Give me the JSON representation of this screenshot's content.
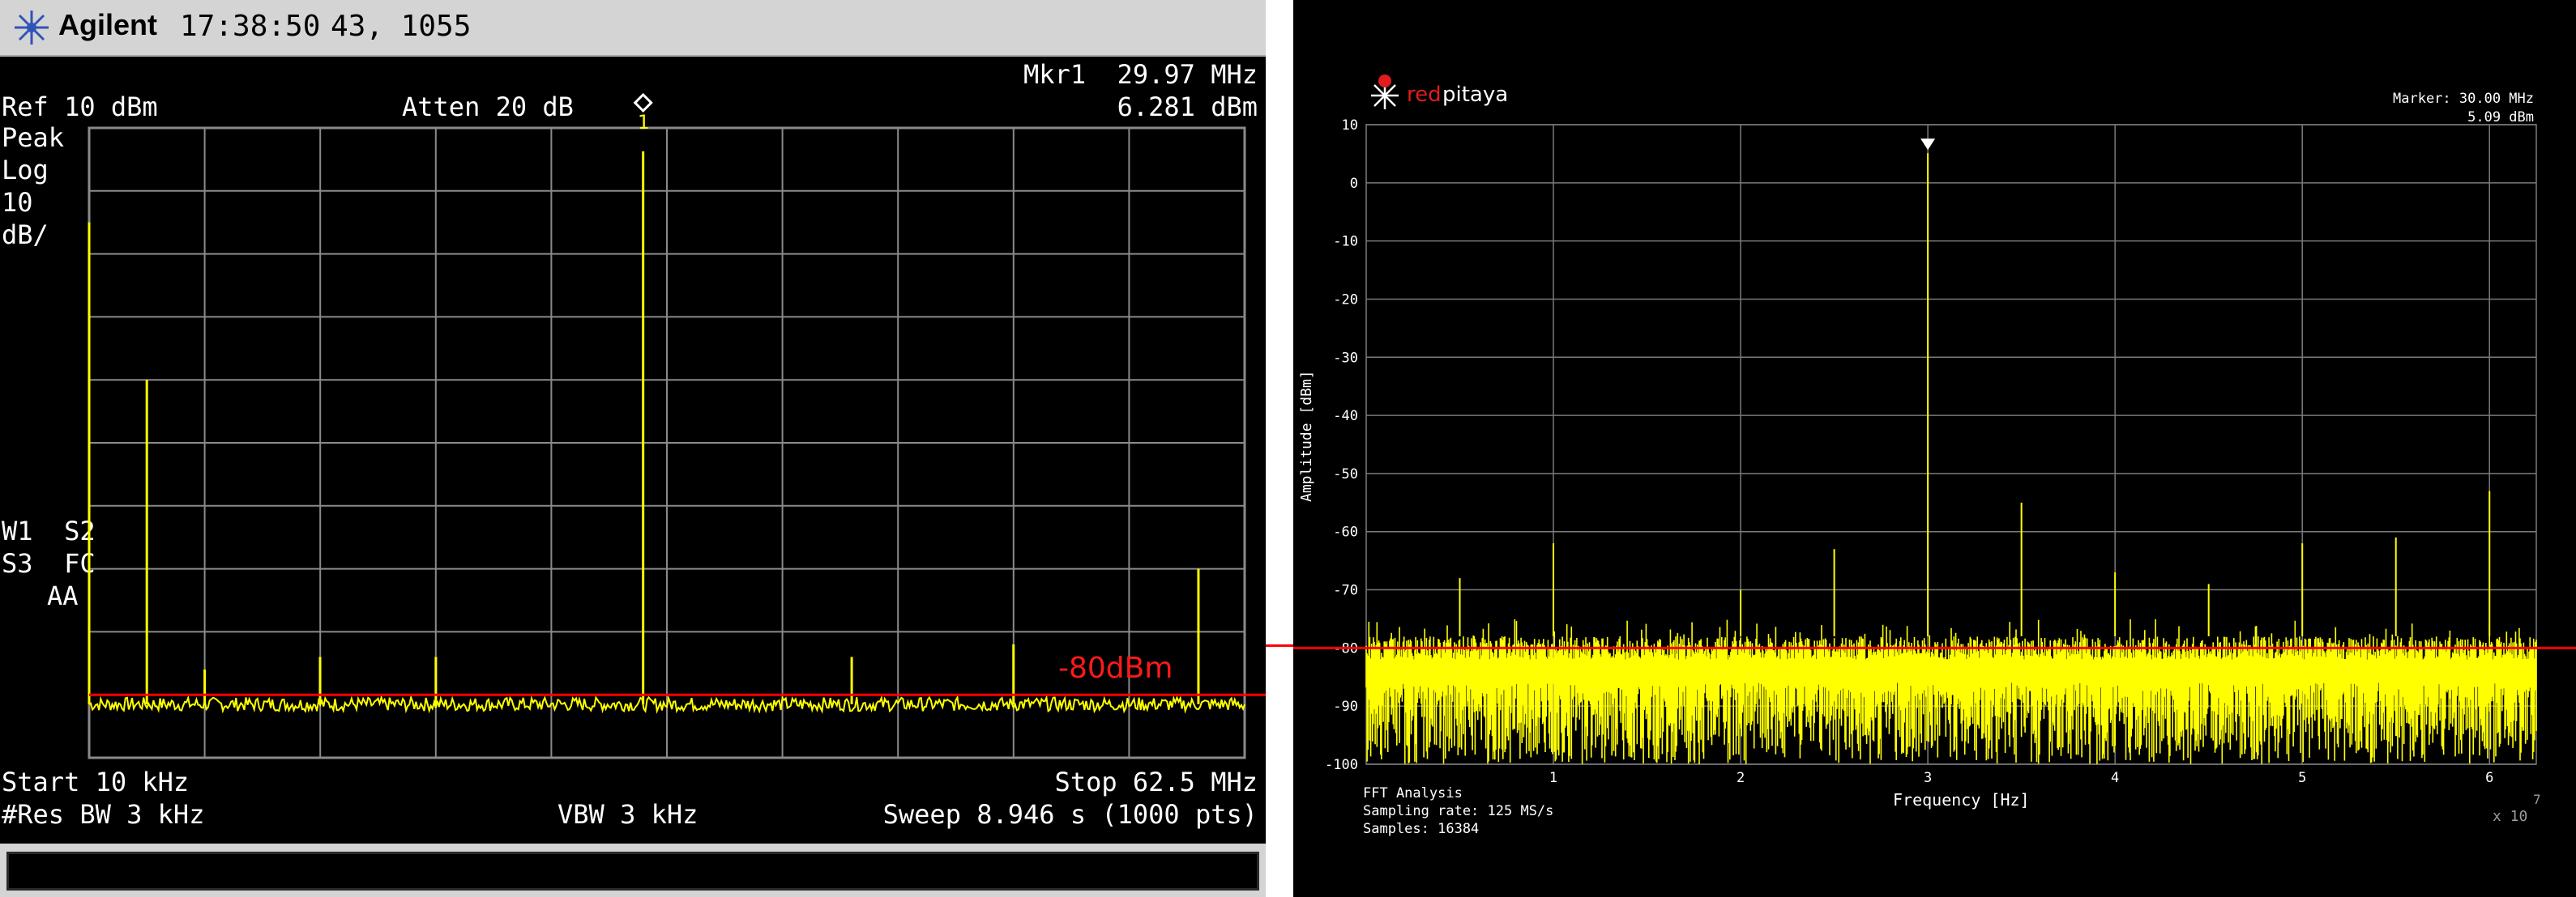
{
  "analyzer": {
    "brand": "Agilent",
    "time": "17:38:50",
    "date": "43, 1055",
    "marker_label": "Mkr1  29.97 MHz",
    "marker_level": "6.281 dBm",
    "ref": "Ref 10 dBm",
    "atten": "Atten 20 dB",
    "detector": "Peak",
    "scale_mode": "Log",
    "scale_value": "10",
    "scale_unit": "dB/",
    "status_1": "W1  S2",
    "status_2": "S3  FC",
    "status_3": "AA",
    "start": "Start 10 kHz",
    "stop": "Stop 62.5 MHz",
    "res_bw": "#Res BW 3 kHz",
    "vbw": "VBW 3 kHz",
    "sweep": "Sweep 8.946 s (1000 pts)",
    "marker_number": "1",
    "annotation": "-80dBm",
    "colors": {
      "trace": "#ffff00",
      "grid": "#8a8a8a",
      "reference_line": "#ff0000",
      "background": "#000000"
    }
  },
  "fft": {
    "logo_red": "red",
    "logo_white": "pitaya",
    "marker_line1": "Marker: 30.00 MHz",
    "marker_line2": "5.09 dBm",
    "ylabel": "Amplitude [dBm]",
    "xlabel": "Frequency [Hz]",
    "x_multiplier": "x 10",
    "x_exponent": "7",
    "info_1": "FFT Analysis",
    "info_2": "Sampling rate: 125 MS/s",
    "info_3": "Samples: 16384",
    "colors": {
      "trace": "#ffff00",
      "grid": "#7a7a7a",
      "reference_line": "#ff0000",
      "background": "#000000"
    }
  },
  "chart_data": [
    {
      "type": "line",
      "title": "",
      "xlabel": "",
      "ylabel": "",
      "x_unit": "MHz",
      "y_unit": "dBm",
      "xlim": [
        0.01,
        62.5
      ],
      "ylim": [
        -90,
        10
      ],
      "grid": true,
      "noise_floor": -81.5,
      "reference_line": -80,
      "series": [
        {
          "x": [
            0.01,
            3.13,
            6.26,
            12.5,
            18.76,
            29.97,
            41.25,
            50.0,
            60.0
          ],
          "y": [
            -5,
            -30,
            -76,
            -74,
            -74,
            6.281,
            -74,
            -72,
            -60
          ]
        }
      ]
    },
    {
      "type": "line",
      "title": "",
      "xlabel": "Frequency [Hz]",
      "ylabel": "Amplitude [dBm]",
      "x_scale_note": "x 10^7",
      "xlim": [
        0,
        6.25
      ],
      "ylim": [
        -100,
        10
      ],
      "x_ticks": [
        1,
        2,
        3,
        4,
        5,
        6
      ],
      "y_ticks": [
        10,
        0,
        -10,
        -20,
        -30,
        -40,
        -50,
        -60,
        -70,
        -80,
        -90,
        -100
      ],
      "grid": true,
      "noise_floor_band": [
        -100,
        -78
      ],
      "reference_line": -80,
      "series": [
        {
          "x": [
            0.5,
            1.0,
            2.0,
            2.5,
            3.0,
            3.5,
            4.0,
            4.5,
            5.0,
            5.5,
            6.0
          ],
          "y": [
            -68,
            -62,
            -70,
            -63,
            5.09,
            -55,
            -67,
            -69,
            -62,
            -61,
            -53
          ]
        }
      ]
    }
  ]
}
